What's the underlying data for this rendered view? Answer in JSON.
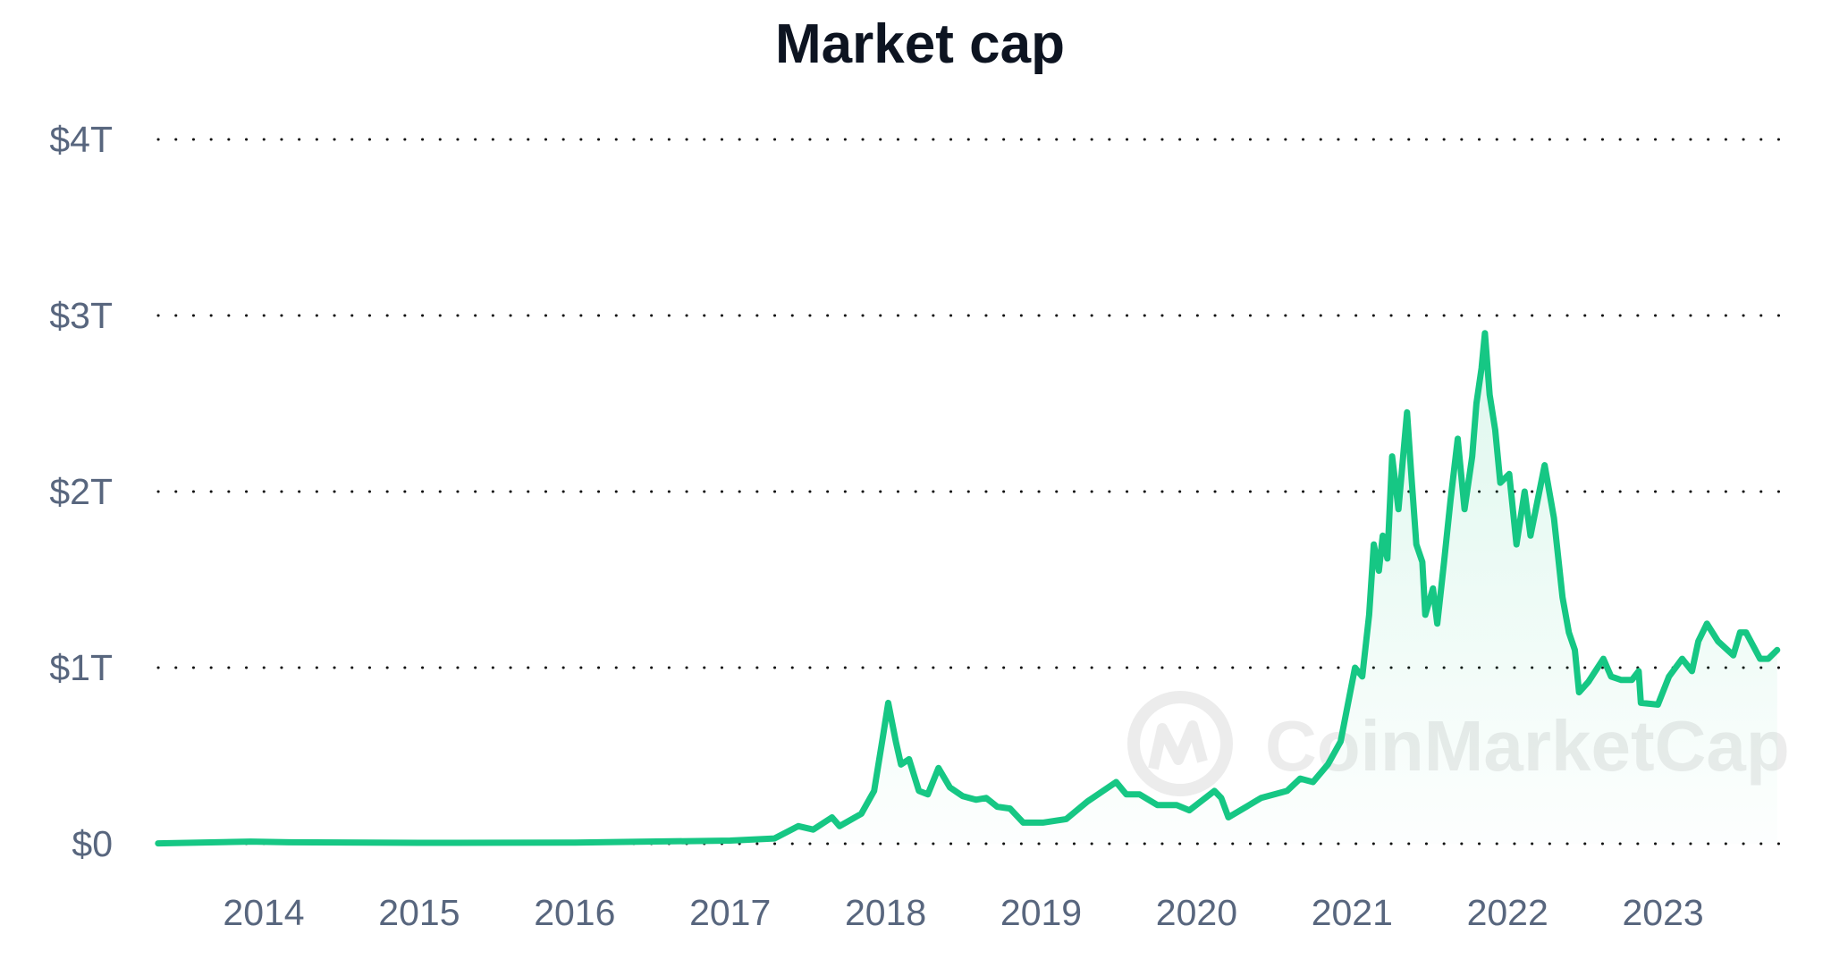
{
  "chart_data": {
    "type": "area",
    "title": "Market cap",
    "xlabel": "",
    "ylabel": "",
    "ylim": [
      0,
      4
    ],
    "y_unit": "trillion USD",
    "y_ticks": [
      {
        "value": 0,
        "label": "$0"
      },
      {
        "value": 1,
        "label": "$1T"
      },
      {
        "value": 2,
        "label": "$2T"
      },
      {
        "value": 3,
        "label": "$3T"
      },
      {
        "value": 4,
        "label": "$4T"
      }
    ],
    "x_ticks": [
      "2014",
      "2015",
      "2016",
      "2017",
      "2018",
      "2019",
      "2020",
      "2021",
      "2022",
      "2023"
    ],
    "xlim": [
      "2013-04-28",
      "2023-09-26"
    ],
    "grid": "horizontal dotted",
    "line_color": "#16c784",
    "watermark": "CoinMarketCap",
    "series": [
      {
        "points": [
          [
            "2013-04-28",
            0.002
          ],
          [
            "2013-12-01",
            0.012
          ],
          [
            "2014-03-01",
            0.008
          ],
          [
            "2015-01-01",
            0.005
          ],
          [
            "2016-01-01",
            0.006
          ],
          [
            "2016-06-01",
            0.011
          ],
          [
            "2017-01-01",
            0.018
          ],
          [
            "2017-04-15",
            0.03
          ],
          [
            "2017-06-10",
            0.1
          ],
          [
            "2017-07-15",
            0.08
          ],
          [
            "2017-08-28",
            0.15
          ],
          [
            "2017-09-15",
            0.1
          ],
          [
            "2017-11-05",
            0.17
          ],
          [
            "2017-12-05",
            0.3
          ],
          [
            "2017-12-25",
            0.6
          ],
          [
            "2018-01-07",
            0.8
          ],
          [
            "2018-01-25",
            0.58
          ],
          [
            "2018-02-06",
            0.45
          ],
          [
            "2018-02-25",
            0.48
          ],
          [
            "2018-03-20",
            0.3
          ],
          [
            "2018-04-10",
            0.28
          ],
          [
            "2018-05-05",
            0.43
          ],
          [
            "2018-06-01",
            0.32
          ],
          [
            "2018-07-01",
            0.27
          ],
          [
            "2018-08-01",
            0.25
          ],
          [
            "2018-08-25",
            0.26
          ],
          [
            "2018-09-20",
            0.21
          ],
          [
            "2018-10-20",
            0.2
          ],
          [
            "2018-11-20",
            0.12
          ],
          [
            "2019-01-05",
            0.12
          ],
          [
            "2019-03-01",
            0.14
          ],
          [
            "2019-04-20",
            0.24
          ],
          [
            "2019-06-26",
            0.35
          ],
          [
            "2019-07-20",
            0.28
          ],
          [
            "2019-08-20",
            0.28
          ],
          [
            "2019-10-01",
            0.22
          ],
          [
            "2019-11-15",
            0.22
          ],
          [
            "2019-12-15",
            0.19
          ],
          [
            "2020-02-12",
            0.3
          ],
          [
            "2020-02-28",
            0.26
          ],
          [
            "2020-03-16",
            0.15
          ],
          [
            "2020-04-20",
            0.2
          ],
          [
            "2020-06-01",
            0.26
          ],
          [
            "2020-08-01",
            0.3
          ],
          [
            "2020-09-01",
            0.37
          ],
          [
            "2020-10-01",
            0.35
          ],
          [
            "2020-11-05",
            0.45
          ],
          [
            "2020-12-05",
            0.58
          ],
          [
            "2021-01-08",
            1.0
          ],
          [
            "2021-01-25",
            0.95
          ],
          [
            "2021-02-10",
            1.3
          ],
          [
            "2021-02-21",
            1.7
          ],
          [
            "2021-03-05",
            1.55
          ],
          [
            "2021-03-14",
            1.75
          ],
          [
            "2021-03-25",
            1.62
          ],
          [
            "2021-04-05",
            2.2
          ],
          [
            "2021-04-20",
            1.9
          ],
          [
            "2021-05-10",
            2.45
          ],
          [
            "2021-05-20",
            2.1
          ],
          [
            "2021-06-01",
            1.7
          ],
          [
            "2021-06-15",
            1.6
          ],
          [
            "2021-06-22",
            1.3
          ],
          [
            "2021-07-10",
            1.45
          ],
          [
            "2021-07-20",
            1.25
          ],
          [
            "2021-08-05",
            1.6
          ],
          [
            "2021-08-20",
            1.95
          ],
          [
            "2021-09-06",
            2.3
          ],
          [
            "2021-09-22",
            1.9
          ],
          [
            "2021-10-10",
            2.2
          ],
          [
            "2021-10-20",
            2.5
          ],
          [
            "2021-11-01",
            2.7
          ],
          [
            "2021-11-09",
            2.9
          ],
          [
            "2021-11-20",
            2.55
          ],
          [
            "2021-12-03",
            2.35
          ],
          [
            "2021-12-15",
            2.05
          ],
          [
            "2022-01-05",
            2.1
          ],
          [
            "2022-01-22",
            1.7
          ],
          [
            "2022-02-10",
            2.0
          ],
          [
            "2022-02-24",
            1.75
          ],
          [
            "2022-03-29",
            2.15
          ],
          [
            "2022-04-20",
            1.85
          ],
          [
            "2022-05-10",
            1.4
          ],
          [
            "2022-05-25",
            1.2
          ],
          [
            "2022-06-08",
            1.1
          ],
          [
            "2022-06-18",
            0.86
          ],
          [
            "2022-07-10",
            0.92
          ],
          [
            "2022-08-14",
            1.05
          ],
          [
            "2022-09-01",
            0.95
          ],
          [
            "2022-09-25",
            0.93
          ],
          [
            "2022-10-20",
            0.93
          ],
          [
            "2022-11-05",
            0.98
          ],
          [
            "2022-11-10",
            0.8
          ],
          [
            "2022-12-20",
            0.79
          ],
          [
            "2023-01-15",
            0.95
          ],
          [
            "2023-02-15",
            1.05
          ],
          [
            "2023-03-10",
            0.98
          ],
          [
            "2023-03-25",
            1.15
          ],
          [
            "2023-04-14",
            1.25
          ],
          [
            "2023-05-10",
            1.15
          ],
          [
            "2023-06-15",
            1.07
          ],
          [
            "2023-07-01",
            1.2
          ],
          [
            "2023-07-15",
            1.2
          ],
          [
            "2023-08-17",
            1.05
          ],
          [
            "2023-09-05",
            1.05
          ],
          [
            "2023-09-26",
            1.1
          ]
        ]
      }
    ]
  }
}
